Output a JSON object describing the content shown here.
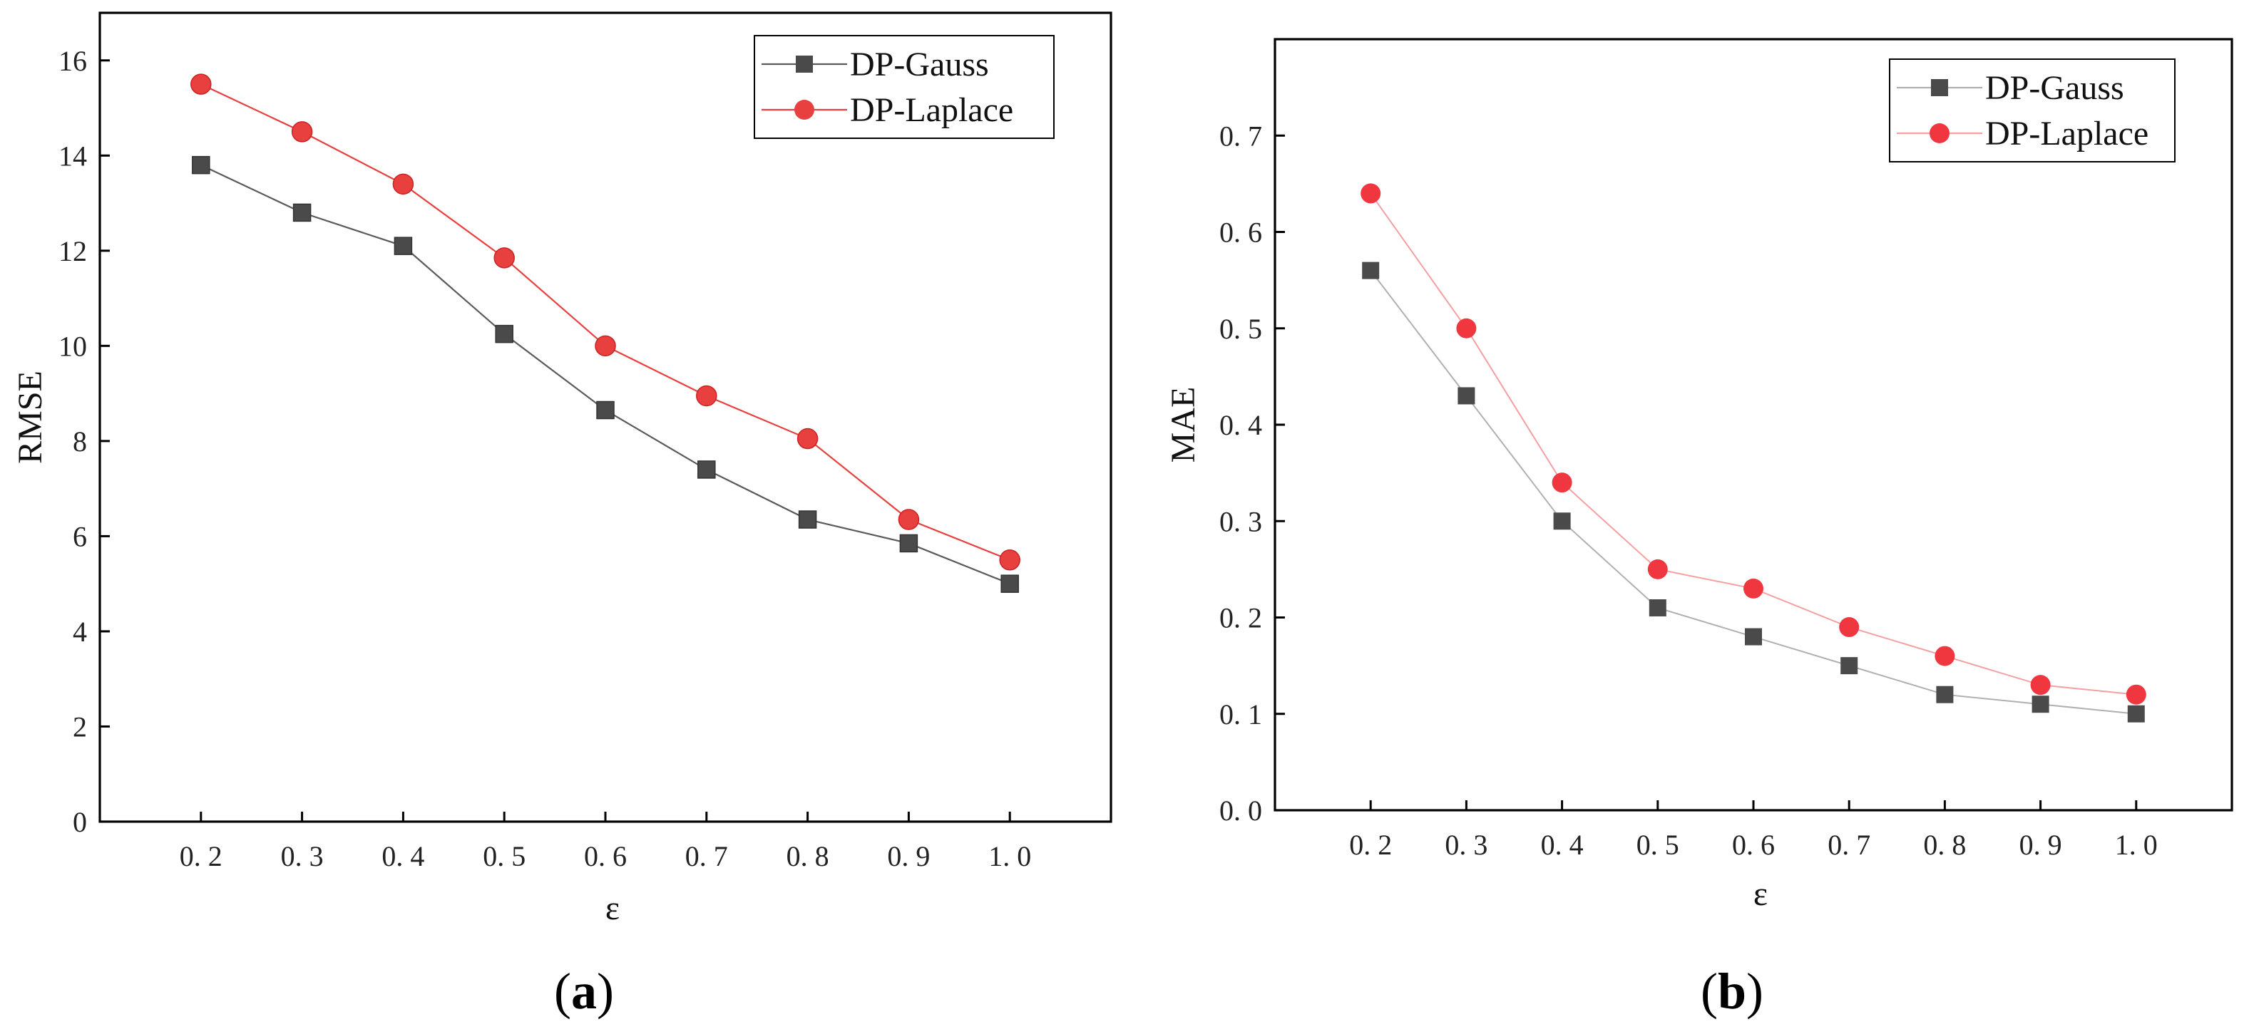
{
  "chart_data": [
    {
      "type": "line",
      "panel_label": "a",
      "categories": [
        "0. 2",
        "0. 3",
        "0. 4",
        "0. 5",
        "0. 6",
        "0. 7",
        "0. 8",
        "0. 9",
        "1. 0"
      ],
      "x": [
        0.2,
        0.3,
        0.4,
        0.5,
        0.6,
        0.7,
        0.8,
        0.9,
        1.0
      ],
      "xlabel": "ε",
      "ylabel": "RMSE",
      "ylim": [
        0,
        17
      ],
      "xlim": [
        0.1,
        1.1
      ],
      "yticks": [
        0,
        2,
        4,
        6,
        8,
        10,
        12,
        14,
        16
      ],
      "ytick_labels": [
        "0",
        "2",
        "4",
        "6",
        "8",
        "10",
        "12",
        "14",
        "16"
      ],
      "legend_position": "top-right",
      "series": [
        {
          "name": "DP-Gauss",
          "marker": "square",
          "color": "#4a4a4a",
          "line_color": "#5a5a5a",
          "values": [
            13.8,
            12.8,
            12.1,
            10.25,
            8.65,
            7.4,
            6.35,
            5.85,
            5.0
          ]
        },
        {
          "name": "DP-Laplace",
          "marker": "circle",
          "color": "#e8403f",
          "line_color": "#e8403f",
          "values": [
            15.5,
            14.5,
            13.4,
            11.85,
            10.0,
            8.95,
            8.05,
            6.35,
            5.5
          ]
        }
      ]
    },
    {
      "type": "line",
      "panel_label": "b",
      "categories": [
        "0. 2",
        "0. 3",
        "0. 4",
        "0. 5",
        "0. 6",
        "0. 7",
        "0. 8",
        "0. 9",
        "1. 0"
      ],
      "x": [
        0.2,
        0.3,
        0.4,
        0.5,
        0.6,
        0.7,
        0.8,
        0.9,
        1.0
      ],
      "xlabel": "ε",
      "ylabel": "MAE",
      "ylim": [
        0,
        0.8
      ],
      "xlim": [
        0.1,
        1.1
      ],
      "yticks": [
        0,
        0.1,
        0.2,
        0.3,
        0.4,
        0.5,
        0.6,
        0.7
      ],
      "ytick_labels": [
        "0. 0",
        "0. 1",
        "0. 2",
        "0. 3",
        "0. 4",
        "0. 5",
        "0. 6",
        "0. 7"
      ],
      "legend_position": "top-right",
      "series": [
        {
          "name": "DP-Gauss",
          "marker": "square",
          "color": "#4a4a4a",
          "line_color": "#b0b0b0",
          "values": [
            0.56,
            0.43,
            0.3,
            0.21,
            0.18,
            0.15,
            0.12,
            0.11,
            0.1
          ]
        },
        {
          "name": "DP-Laplace",
          "marker": "circle",
          "color": "#f0373f",
          "line_color": "#f4a0a3",
          "values": [
            0.64,
            0.5,
            0.34,
            0.25,
            0.23,
            0.19,
            0.16,
            0.13,
            0.12
          ]
        }
      ]
    }
  ]
}
